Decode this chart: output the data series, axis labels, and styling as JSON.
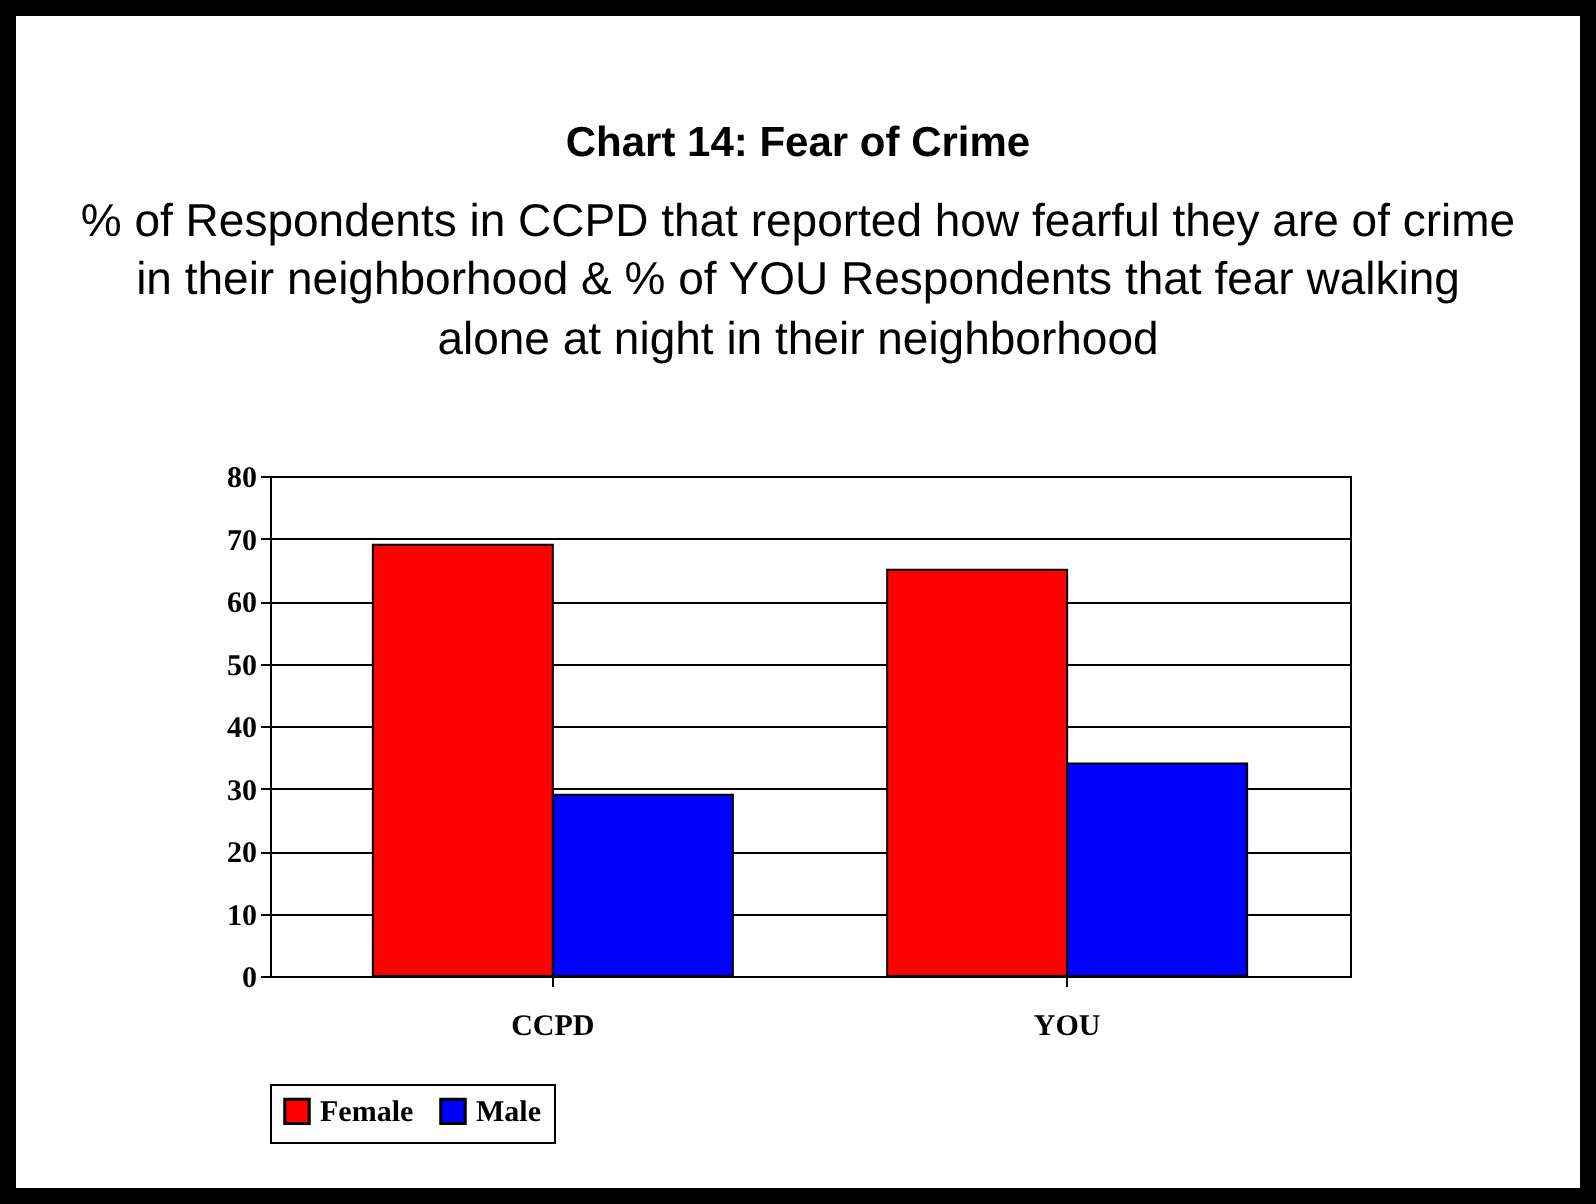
{
  "chart_data": {
    "type": "bar",
    "title": "Chart 14:  Fear of Crime",
    "subtitle": "% of Respondents in CCPD that reported how fearful they are of crime in their neighborhood &  % of  YOU Respondents that fear walking alone at night in their neighborhood",
    "categories": [
      "CCPD",
      "YOU"
    ],
    "series": [
      {
        "name": "Female",
        "color": "#ff0000",
        "values": [
          69,
          65
        ]
      },
      {
        "name": "Male",
        "color": "#0000ff",
        "values": [
          29,
          34
        ]
      }
    ],
    "ylim": [
      0,
      80
    ],
    "yticks": [
      0,
      10,
      20,
      30,
      40,
      50,
      60,
      70,
      80
    ],
    "grid": "y",
    "legend": "bottom"
  }
}
